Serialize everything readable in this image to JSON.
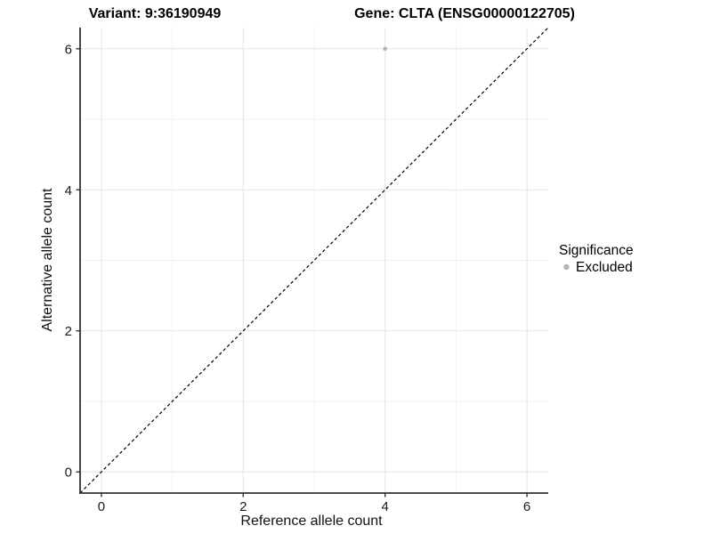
{
  "chart_data": {
    "type": "scatter",
    "title_left": "Variant: 9:36190949",
    "title_right": "Gene: CLTA (ENSG00000122705)",
    "xlabel": "Reference allele count",
    "ylabel": "Alternative allele count",
    "xlim": [
      -0.3,
      6.3
    ],
    "ylim": [
      -0.3,
      6.3
    ],
    "x_ticks": [
      0,
      2,
      4,
      6
    ],
    "y_ticks": [
      0,
      2,
      4,
      6
    ],
    "x_minor_gridlines": [
      1,
      3,
      5
    ],
    "y_minor_gridlines": [
      1,
      3,
      5
    ],
    "grid": true,
    "series": [
      {
        "name": "Excluded",
        "color": "#b5b5b5",
        "points": [
          {
            "x": 4,
            "y": 6
          }
        ]
      }
    ],
    "reference_line": {
      "type": "identity",
      "slope": 1,
      "intercept": 0,
      "style": "dashed",
      "color": "#000000"
    },
    "legend": {
      "title": "Significance",
      "position": "right",
      "items": [
        {
          "label": "Excluded",
          "color": "#b5b5b5"
        }
      ]
    },
    "colors": {
      "grid_major": "#e6e6e6",
      "grid_minor": "#f2f2f2",
      "axis_line": "#333333",
      "tick_mark": "#333333"
    }
  }
}
